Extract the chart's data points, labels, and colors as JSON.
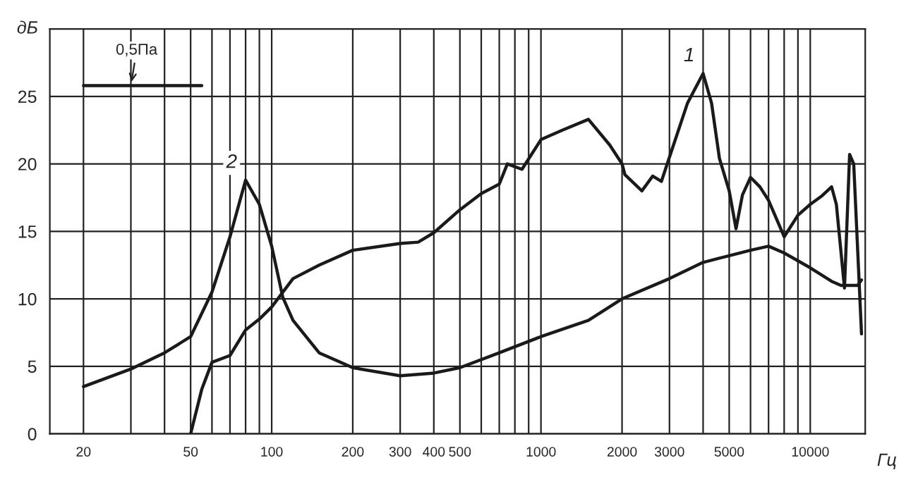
{
  "chart_data": {
    "type": "line",
    "xlabel": "Гц",
    "ylabel": "дБ",
    "log": "x",
    "grid": true,
    "marker": "none",
    "line_style": "solid",
    "legend": false,
    "xlim": [
      15,
      16000
    ],
    "ylim": [
      0,
      30
    ],
    "xticks": [
      20,
      {
        "value": 30,
        "label": null
      },
      {
        "value": 40,
        "label": null
      },
      50,
      {
        "value": 60,
        "label": null
      },
      {
        "value": 70,
        "label": null
      },
      {
        "value": 80,
        "label": null
      },
      {
        "value": 90,
        "label": null
      },
      100,
      200,
      300,
      400,
      500,
      {
        "value": 600,
        "label": null
      },
      {
        "value": 700,
        "label": null
      },
      {
        "value": 800,
        "label": null
      },
      {
        "value": 900,
        "label": null
      },
      1000,
      2000,
      3000,
      {
        "value": 4000,
        "label": null
      },
      5000,
      {
        "value": 6000,
        "label": null
      },
      {
        "value": 7000,
        "label": null
      },
      {
        "value": 8000,
        "label": null
      },
      {
        "value": 9000,
        "label": null
      },
      10000
    ],
    "yticks": [
      0,
      5,
      10,
      15,
      20,
      25
    ],
    "series": [
      {
        "name": "1",
        "color": "#1a1a1a",
        "x": [
          50,
          55,
          60,
          70,
          80,
          90,
          100,
          120,
          150,
          200,
          300,
          350,
          400,
          500,
          600,
          700,
          750,
          850,
          1000,
          1200,
          1500,
          1800,
          2000,
          2050,
          2370,
          2600,
          2800,
          3000,
          3500,
          4000,
          4300,
          4600,
          5000,
          5300,
          5600,
          6000,
          6500,
          7000,
          8000,
          9000,
          10000,
          11000,
          12000,
          12500,
          13400,
          14000,
          14500,
          15500
        ],
        "values": [
          0,
          3.3,
          5.3,
          5.8,
          7.7,
          8.5,
          9.4,
          11.5,
          12.5,
          13.6,
          14.1,
          14.2,
          14.9,
          16.6,
          17.8,
          18.5,
          20.0,
          19.6,
          21.8,
          22.5,
          23.3,
          21.4,
          20.0,
          19.2,
          18.0,
          19.1,
          18.7,
          20.5,
          24.5,
          26.7,
          24.5,
          20.4,
          18.0,
          15.2,
          17.7,
          19.0,
          18.3,
          17.3,
          14.6,
          16.2,
          17.0,
          17.6,
          18.3,
          17.0,
          10.8,
          20.7,
          20.0,
          7.4
        ]
      },
      {
        "name": "2",
        "color": "#1a1a1a",
        "x": [
          20,
          30,
          40,
          50,
          60,
          70,
          80,
          90,
          100,
          110,
          120,
          150,
          200,
          300,
          400,
          500,
          700,
          1000,
          1500,
          2000,
          3000,
          4000,
          5000,
          6000,
          7000,
          8000,
          10000,
          12000,
          13000,
          15000,
          15500
        ],
        "values": [
          3.5,
          4.8,
          6.0,
          7.2,
          10.5,
          14.6,
          18.8,
          17.0,
          13.9,
          10.1,
          8.4,
          6.0,
          4.9,
          4.3,
          4.5,
          4.9,
          6.0,
          7.2,
          8.4,
          10.0,
          11.5,
          12.7,
          13.2,
          13.6,
          13.9,
          13.4,
          12.3,
          11.3,
          11.0,
          11.0,
          11.4
        ]
      },
      {
        "type": "line",
        "color": "#1a1a1a",
        "x": [
          20,
          55
        ],
        "values": [
          25.8,
          25.8
        ]
      }
    ],
    "annotations": [
      {
        "text": "0,5Па",
        "x": 30,
        "y": 25.8
      }
    ]
  }
}
